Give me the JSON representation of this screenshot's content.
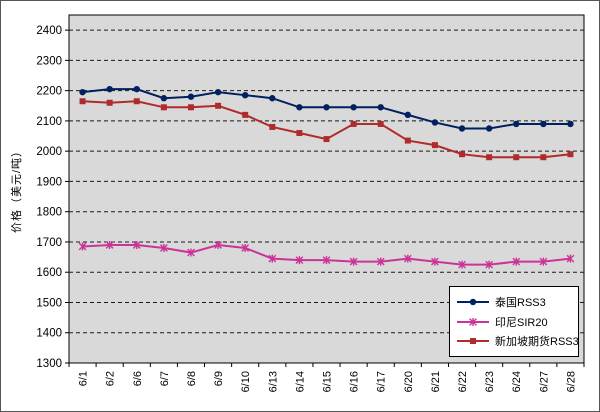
{
  "chart_data": {
    "type": "line",
    "title": "",
    "xlabel": "",
    "ylabel": "价格（美元/吨）",
    "ylim": [
      1300,
      2400
    ],
    "ytick_step": 100,
    "grid": "dashed-horizontal",
    "legend_position": "bottom-right",
    "plot_bg_color": "#d9d9d9",
    "grid_color": "#1a1a1a",
    "axis_color": "#000000",
    "categories": [
      "6/1",
      "6/2",
      "6/6",
      "6/7",
      "6/8",
      "6/9",
      "6/10",
      "6/13",
      "6/14",
      "6/15",
      "6/16",
      "6/17",
      "6/20",
      "6/21",
      "6/22",
      "6/23",
      "6/24",
      "6/27",
      "6/28"
    ],
    "series": [
      {
        "name": "泰国RSS3",
        "color": "#002060",
        "marker": "circle",
        "values": [
          2195,
          2205,
          2205,
          2175,
          2180,
          2195,
          2185,
          2175,
          2145,
          2145,
          2145,
          2145,
          2120,
          2095,
          2075,
          2075,
          2090,
          2090,
          2090
        ]
      },
      {
        "name": "印尼SIR20",
        "color": "#cc3399",
        "marker": "x",
        "values": [
          1685,
          1690,
          1690,
          1680,
          1665,
          1690,
          1680,
          1645,
          1640,
          1640,
          1635,
          1635,
          1645,
          1635,
          1625,
          1625,
          1635,
          1635,
          1645
        ]
      },
      {
        "name": "新加坡期货RSS3",
        "color": "#b02b2b",
        "marker": "square",
        "values": [
          2165,
          2160,
          2165,
          2145,
          2145,
          2150,
          2120,
          2080,
          2060,
          2040,
          2090,
          2090,
          2035,
          2020,
          1990,
          1980,
          1980,
          1980,
          1990
        ]
      }
    ]
  }
}
